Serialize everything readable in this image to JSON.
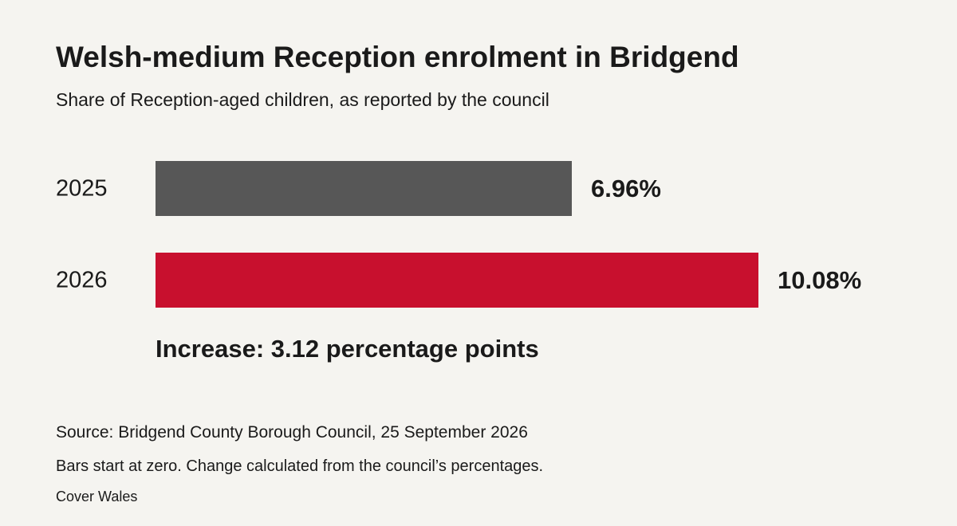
{
  "chart_data": {
    "type": "bar",
    "orientation": "horizontal",
    "title": "Welsh-medium Reception enrolment in Bridgend",
    "subtitle": "Share of Reception-aged children, as reported by the council",
    "categories": [
      "2025",
      "2026"
    ],
    "values": [
      6.96,
      10.08
    ],
    "value_labels": [
      "6.96%",
      "10.08%"
    ],
    "bar_colors": [
      "#575757",
      "#c8102e"
    ],
    "xlim": [
      0,
      10.08
    ],
    "grid": false,
    "annotation": "Increase: 3.12 percentage points"
  },
  "footer": {
    "source": "Source: Bridgend County Borough Council, 25 September 2026",
    "note": "Bars start at zero. Change calculated from the council’s percentages.",
    "credit": "Cover Wales"
  }
}
